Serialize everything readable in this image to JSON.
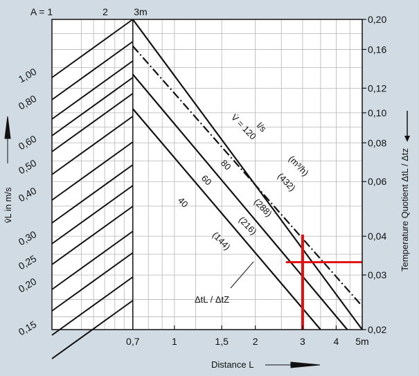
{
  "chart_data": {
    "type": "line",
    "xlabel": "Distance L",
    "ylabel_left": "v̄L in m/s",
    "ylabel_right": "Temperature Quotient ΔtL / Δtz",
    "x_ticks": [
      {
        "value": 0.7,
        "label": "0,7"
      },
      {
        "value": 1,
        "label": "1"
      },
      {
        "value": 1.5,
        "label": "1,5"
      },
      {
        "value": 2,
        "label": "2"
      },
      {
        "value": 3,
        "label": "3"
      },
      {
        "value": 4,
        "label": "4"
      },
      {
        "value": 5,
        "label": "5m"
      }
    ],
    "y_left_ticks": [
      {
        "value": 1.0,
        "label": "1,00"
      },
      {
        "value": 0.8,
        "label": "0,80"
      },
      {
        "value": 0.6,
        "label": "0,60"
      },
      {
        "value": 0.5,
        "label": "0,50"
      },
      {
        "value": 0.4,
        "label": "0,40"
      },
      {
        "value": 0.3,
        "label": "0,30"
      },
      {
        "value": 0.25,
        "label": "0,25"
      },
      {
        "value": 0.2,
        "label": "0,20"
      },
      {
        "value": 0.15,
        "label": "0,15"
      }
    ],
    "y_right_ticks": [
      {
        "value": 0.2,
        "label": "0,20"
      },
      {
        "value": 0.16,
        "label": "0,16"
      },
      {
        "value": 0.12,
        "label": "0,12"
      },
      {
        "value": 0.1,
        "label": "0,10"
      },
      {
        "value": 0.08,
        "label": "0,08"
      },
      {
        "value": 0.06,
        "label": "0,06"
      },
      {
        "value": 0.04,
        "label": "0,04"
      },
      {
        "value": 0.03,
        "label": "0,03"
      },
      {
        "value": 0.02,
        "label": "0,02"
      }
    ],
    "top_labels": [
      "A = 1",
      "2",
      "3m"
    ],
    "series": [
      {
        "name": "V̇ = 120",
        "flow_m3h": "(432)",
        "style": "solid",
        "points": [
          [
            0.7,
            0.2
          ],
          [
            5,
            0.02
          ]
        ]
      },
      {
        "name": "80",
        "flow_m3h": "(288)",
        "style": "dash-dot",
        "points": [
          [
            0.7,
            0.164
          ],
          [
            5,
            0.0238
          ]
        ]
      },
      {
        "name": "60",
        "flow_m3h": "(216)",
        "style": "solid",
        "points": [
          [
            0.7,
            0.133
          ],
          [
            4.4,
            0.02
          ]
        ]
      },
      {
        "name": "40",
        "flow_m3h": "(144)",
        "style": "solid",
        "points": [
          [
            0.7,
            0.103
          ],
          [
            3.5,
            0.02
          ]
        ]
      }
    ],
    "annotations": {
      "unit_label": "l/s",
      "unit_flow": "(m³/h)",
      "quotient_label": "ΔtL / ΔtZ"
    },
    "example_reading": {
      "color": "#e01010",
      "x": 3,
      "y": 0.033
    }
  }
}
